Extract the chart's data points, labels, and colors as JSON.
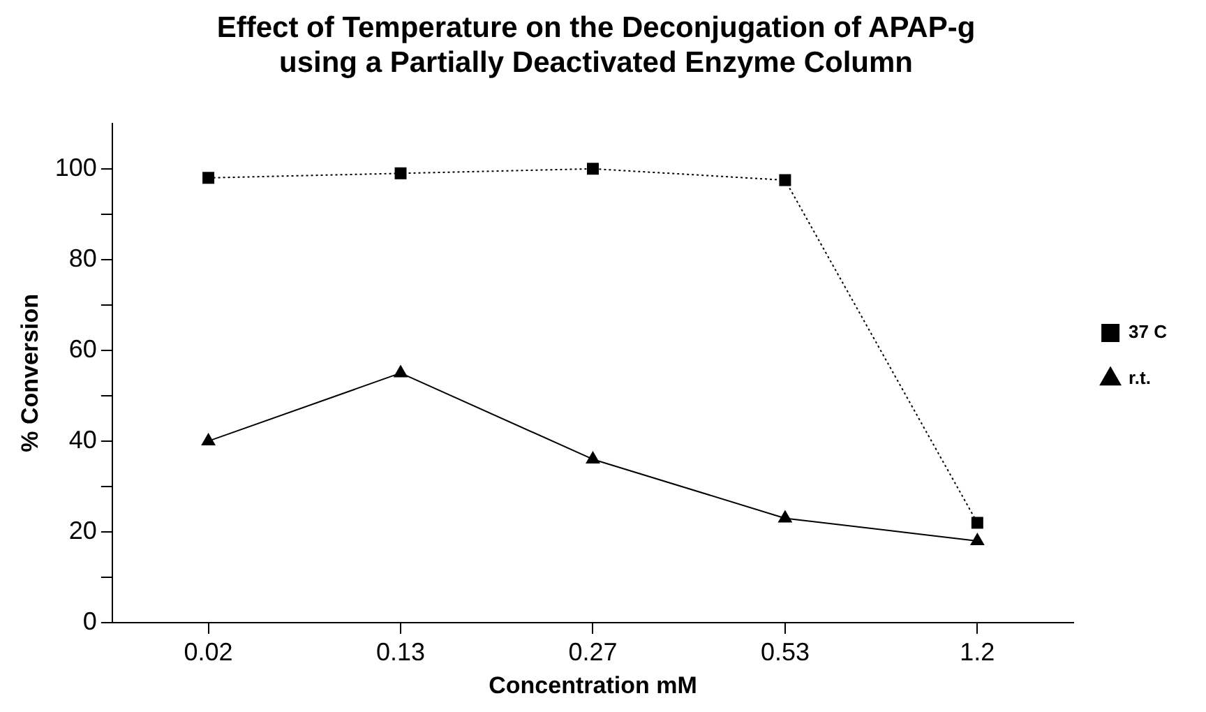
{
  "chart_data": {
    "type": "line",
    "title": "Effect of Temperature on the Deconjugation of APAP-g\nusing a Partially Deactivated Enzyme Column",
    "xlabel": "Concentration mM",
    "ylabel": "% Conversion",
    "categories": [
      "0.02",
      "0.13",
      "0.27",
      "0.53",
      "1.2"
    ],
    "series": [
      {
        "name": "37 C",
        "color": "#000000",
        "marker": "square",
        "line_style": "dotted",
        "values": [
          98,
          99,
          100,
          97.5,
          22
        ]
      },
      {
        "name": "r.t.",
        "color": "#000000",
        "marker": "triangle",
        "line_style": "solid",
        "values": [
          40,
          55,
          36,
          23,
          18
        ]
      }
    ],
    "ylim": [
      0,
      110
    ],
    "yticks": [
      0,
      {
        "value": 10,
        "label": null
      },
      20,
      {
        "value": 30,
        "label": null
      },
      40,
      {
        "value": 50,
        "label": null
      },
      60,
      {
        "value": 70,
        "label": null
      },
      80,
      {
        "value": 90,
        "label": null
      },
      100
    ],
    "grid": false,
    "legend": "right"
  }
}
